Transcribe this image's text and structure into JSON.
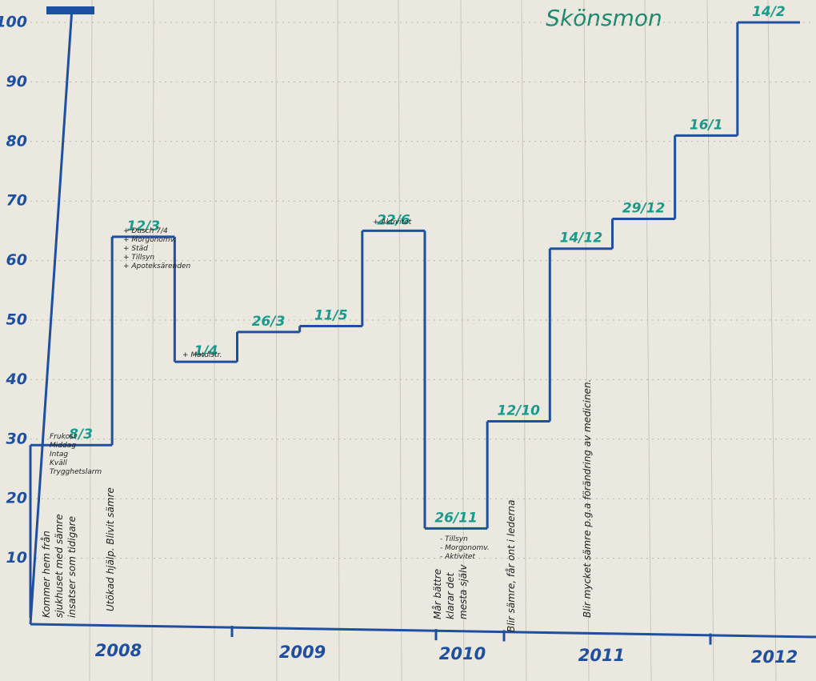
{
  "chart_data": {
    "type": "step",
    "title": "Skönsmon",
    "categories": [
      "8/3",
      "12/3",
      "1/4",
      "26/3",
      "11/5",
      "22/6",
      "26/11",
      "12/10",
      "14/12",
      "29/12",
      "16/1",
      "14/2"
    ],
    "values": [
      29,
      64,
      43,
      48,
      49,
      65,
      15,
      33,
      62,
      67,
      81,
      100
    ],
    "color": "#1f4fa0",
    "label_color": "#1a9a8a",
    "ylim": [
      0,
      100
    ],
    "yticks": [
      10,
      20,
      30,
      40,
      50,
      60,
      70,
      80,
      90,
      100
    ],
    "grid": true,
    "year_labels": [
      "2008",
      "2009",
      "2010",
      "2011",
      "2012"
    ],
    "annotations": [
      "Frukost",
      "Middag",
      "Intag",
      "Kväll",
      "Trygghetslarm",
      "Kommer hem från",
      "sjukhuset med sämre",
      "insatser som tidigare",
      "Utökad hjälp. Blivit sämre",
      "+ Dusch 7/4",
      "+ Morgonomv.",
      "+ Städ",
      "+ Tillsyn",
      "+ Apoteksärenden",
      "+ Matdistr.",
      "+ Aktivitet",
      "- Tillsyn",
      "- Morgonomv.",
      "- Aktivitet",
      "Mår bättre",
      "klarar det",
      "mesta själv",
      "Blir sämre, får ont i lederna",
      "Blir mycket sämre p.g.a förändring av medicinen."
    ]
  }
}
